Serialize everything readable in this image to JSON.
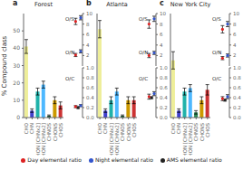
{
  "chart_data": [
    {
      "type": "bar",
      "title": "Forest",
      "annotations": [
        "a"
      ],
      "ylabel": "% Compound class",
      "categories": [
        "CHO",
        "CHN",
        "CHON\n[CHNx2]",
        "CHON\n[CHNx2]",
        "CHNOS",
        "CHONS",
        "CHOS"
      ],
      "values": [
        41,
        4,
        15,
        19,
        1,
        10,
        7
      ],
      "errors": [
        4,
        1,
        2,
        2,
        0.5,
        2,
        2
      ],
      "colors": [
        "#eeee99",
        "#4040cc",
        "#20b2aa",
        "#4db8ff",
        "#2e8b57",
        "#cc9900",
        "#cc3333"
      ],
      "ylim": [
        0,
        60
      ],
      "yticks": [
        0,
        10,
        20,
        30,
        40,
        50
      ]
    },
    {
      "type": "scatter",
      "annotations": [
        "O/S",
        "O/N"
      ],
      "ylim": [
        0,
        10
      ],
      "yticks": [
        2,
        4,
        6,
        8,
        10
      ],
      "series": [
        {
          "name": "Day elemental ratio",
          "color": "#dd2222",
          "values": [
            8.5,
            2.1
          ],
          "errors": [
            0.6,
            0.3
          ]
        },
        {
          "name": "Night elemental ratio",
          "color": "#3355cc",
          "values": [
            9.2,
            2.8
          ],
          "errors": [
            0.4,
            0.3
          ]
        }
      ]
    },
    {
      "type": "scatter",
      "annotations": [
        "O/C"
      ],
      "ylim": [
        0,
        1
      ],
      "yticks": [
        {
          "value": 0,
          "label": "0.0"
        },
        0.2,
        0.4,
        0.6,
        0.8,
        {
          "value": 1,
          "label": "1.0"
        }
      ],
      "series": [
        {
          "name": "Day elemental ratio",
          "color": "#dd2222",
          "values": [
            0.22
          ],
          "errors": [
            0.02
          ]
        },
        {
          "name": "Night elemental ratio",
          "color": "#3355cc",
          "values": [
            0.24
          ],
          "errors": [
            0.02
          ]
        },
        {
          "name": "AMS elemental ratio",
          "color": "#222222",
          "values": [
            0.2
          ],
          "errors": [
            0.02
          ]
        }
      ]
    },
    {
      "type": "bar",
      "title": "Atlanta",
      "annotations": [
        "b"
      ],
      "tick_labels": "x",
      "categories": [
        "CHO",
        "CHN",
        "CHON\n[CHNx2]",
        "CHON\n[CHNx2]",
        "CHNOS",
        "CHONS",
        "CHOS"
      ],
      "values": [
        51,
        4,
        10,
        15,
        1,
        10,
        10
      ],
      "errors": [
        5,
        1,
        2,
        2,
        0.5,
        2,
        2
      ],
      "colors": [
        "#eeee99",
        "#4040cc",
        "#20b2aa",
        "#4db8ff",
        "#2e8b57",
        "#cc9900",
        "#cc3333"
      ],
      "ylim": [
        0,
        60
      ],
      "yticks": [
        0,
        10,
        20,
        30,
        40,
        50
      ]
    },
    {
      "type": "scatter",
      "annotations": [
        "O/S",
        "O/N"
      ],
      "ylim": [
        0,
        10
      ],
      "yticks": [
        2,
        4,
        6,
        8,
        10
      ],
      "series": [
        {
          "name": "Day elemental ratio",
          "color": "#dd2222",
          "values": [
            8.0,
            2.0
          ],
          "errors": [
            0.8,
            0.4
          ]
        },
        {
          "name": "Night elemental ratio",
          "color": "#3355cc",
          "values": [
            9.0,
            2.5
          ],
          "errors": [
            0.5,
            0.3
          ]
        }
      ]
    },
    {
      "type": "scatter",
      "annotations": [
        "O/C"
      ],
      "ylim": [
        0,
        1
      ],
      "yticks": [
        {
          "value": 0,
          "label": "0.0"
        },
        0.2,
        0.4,
        0.6,
        0.8,
        {
          "value": 1,
          "label": "1.0"
        }
      ],
      "series": [
        {
          "name": "Day elemental ratio",
          "color": "#dd2222",
          "values": [
            0.42
          ],
          "errors": [
            0.05
          ]
        },
        {
          "name": "Night elemental ratio",
          "color": "#3355cc",
          "values": [
            0.48
          ],
          "errors": [
            0.04
          ]
        },
        {
          "name": "AMS elemental ratio",
          "color": "#222222",
          "values": [
            0.4
          ],
          "errors": [
            0.02
          ]
        }
      ]
    },
    {
      "type": "bar",
      "title": "New York City",
      "annotations": [
        "c"
      ],
      "tick_labels": "x",
      "categories": [
        "CHO",
        "CHN",
        "CHON\n[CHNx2]",
        "CHON\n[CHNx2]",
        "CHNOS",
        "CHONS",
        "CHOS"
      ],
      "values": [
        33,
        4,
        15,
        17,
        3,
        10,
        16
      ],
      "errors": [
        5,
        1,
        2,
        2,
        1,
        2,
        3
      ],
      "colors": [
        "#eeee99",
        "#4040cc",
        "#20b2aa",
        "#4db8ff",
        "#2e8b57",
        "#cc9900",
        "#cc3333"
      ],
      "ylim": [
        0,
        60
      ],
      "yticks": [
        0,
        10,
        20,
        30,
        40,
        50
      ]
    },
    {
      "type": "scatter",
      "annotations": [
        "O/S",
        "O/N"
      ],
      "ylim": [
        0,
        10
      ],
      "yticks": [
        2,
        4,
        6,
        8,
        10
      ],
      "series": [
        {
          "name": "Day elemental ratio",
          "color": "#dd2222",
          "values": [
            7.0,
            1.5
          ],
          "errors": [
            0.7,
            0.3
          ]
        },
        {
          "name": "Night elemental ratio",
          "color": "#3355cc",
          "values": [
            8.0,
            2.0
          ],
          "errors": [
            0.5,
            0.3
          ]
        }
      ]
    },
    {
      "type": "scatter",
      "annotations": [
        "O/C"
      ],
      "ylim": [
        0,
        1
      ],
      "yticks": [
        {
          "value": 0,
          "label": "0.0"
        },
        0.2,
        0.4,
        0.6,
        0.8,
        {
          "value": 1,
          "label": "1.0"
        }
      ],
      "series": [
        {
          "name": "Day elemental ratio",
          "color": "#dd2222",
          "values": [
            0.38
          ],
          "errors": [
            0.04
          ]
        },
        {
          "name": "Night elemental ratio",
          "color": "#3355cc",
          "values": [
            0.42
          ],
          "errors": [
            0.04
          ]
        },
        {
          "name": "AMS elemental ratio",
          "color": "#222222",
          "values": [
            0.35
          ],
          "errors": [
            0.02
          ]
        }
      ]
    }
  ]
}
